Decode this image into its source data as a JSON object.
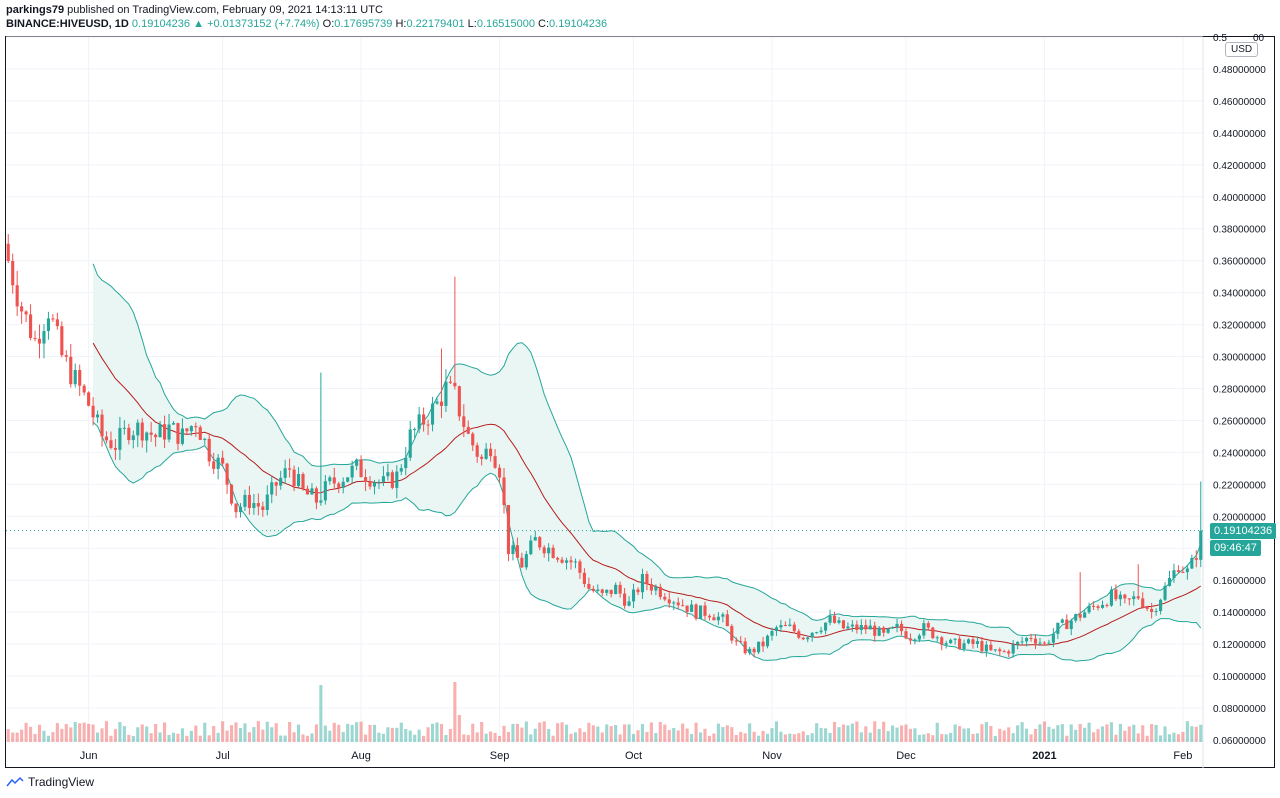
{
  "header": {
    "author": "parkings79",
    "published": "published on TradingView.com, February 09, 2021 14:13:11 UTC",
    "symbol": "BINANCE:HIVEUSD, 1D",
    "last": "0.19104236",
    "change": "+0.01373152 (+7.74%)",
    "o_label": "O:",
    "o": "0.17695739",
    "h_label": "H:",
    "h": "0.22179401",
    "l_label": "L:",
    "l": "0.16515000",
    "c_label": "C:",
    "c": "0.19104236"
  },
  "currency": "USD",
  "price_tag": "0.19104236",
  "countdown_tag": "09:46:47",
  "footer": {
    "brand": "TradingView"
  },
  "colors": {
    "up": "#26a69a",
    "down": "#ef5350",
    "band": "#26a69a",
    "basis": "#b71c1c",
    "band_fill": "#e9f6f4"
  },
  "chart_data": {
    "type": "candlestick",
    "y_axis": {
      "min": 0.06,
      "max": 0.5,
      "ticks": [
        "0.48000000",
        "0.46000000",
        "0.44000000",
        "0.42000000",
        "0.40000000",
        "0.38000000",
        "0.36000000",
        "0.34000000",
        "0.32000000",
        "0.30000000",
        "0.28000000",
        "0.26000000",
        "0.24000000",
        "0.22000000",
        "0.20000000",
        "0.16000000",
        "0.14000000",
        "0.12000000",
        "0.10000000",
        "0.08000000",
        "0.06000000"
      ],
      "tick_values": [
        0.48,
        0.46,
        0.44,
        0.42,
        0.4,
        0.38,
        0.36,
        0.34,
        0.32,
        0.3,
        0.28,
        0.26,
        0.24,
        0.22,
        0.2,
        0.16,
        0.14,
        0.12,
        0.1,
        0.08,
        0.06
      ],
      "top_tick_partial": "0.5",
      "top_tick_partial_suffix": "00"
    },
    "x_axis": {
      "labels": [
        "Jun",
        "Jul",
        "Aug",
        "Sep",
        "Oct",
        "Nov",
        "Dec",
        "2021",
        "Feb"
      ],
      "label_day_index": [
        18,
        48,
        79,
        110,
        140,
        171,
        201,
        232,
        263
      ],
      "bold": [
        false,
        false,
        false,
        false,
        false,
        false,
        false,
        true,
        false
      ]
    },
    "last_price": 0.19104236,
    "close_anchors": [
      [
        0,
        0.36
      ],
      [
        3,
        0.33
      ],
      [
        6,
        0.31
      ],
      [
        9,
        0.33
      ],
      [
        12,
        0.3
      ],
      [
        15,
        0.285
      ],
      [
        18,
        0.27
      ],
      [
        21,
        0.25
      ],
      [
        24,
        0.245
      ],
      [
        27,
        0.255
      ],
      [
        30,
        0.255
      ],
      [
        33,
        0.25
      ],
      [
        36,
        0.255
      ],
      [
        39,
        0.25
      ],
      [
        42,
        0.26
      ],
      [
        45,
        0.24
      ],
      [
        48,
        0.23
      ],
      [
        51,
        0.205
      ],
      [
        54,
        0.21
      ],
      [
        57,
        0.205
      ],
      [
        60,
        0.22
      ],
      [
        63,
        0.23
      ],
      [
        66,
        0.215
      ],
      [
        69,
        0.21
      ],
      [
        72,
        0.22
      ],
      [
        75,
        0.225
      ],
      [
        78,
        0.23
      ],
      [
        81,
        0.225
      ],
      [
        84,
        0.22
      ],
      [
        87,
        0.225
      ],
      [
        90,
        0.25
      ],
      [
        93,
        0.26
      ],
      [
        96,
        0.27
      ],
      [
        98,
        0.28
      ],
      [
        100,
        0.275
      ],
      [
        103,
        0.25
      ],
      [
        106,
        0.235
      ],
      [
        108,
        0.245
      ],
      [
        110,
        0.23
      ],
      [
        112,
        0.18
      ],
      [
        115,
        0.17
      ],
      [
        118,
        0.185
      ],
      [
        121,
        0.18
      ],
      [
        124,
        0.175
      ],
      [
        127,
        0.17
      ],
      [
        130,
        0.155
      ],
      [
        133,
        0.15
      ],
      [
        136,
        0.155
      ],
      [
        139,
        0.145
      ],
      [
        142,
        0.16
      ],
      [
        145,
        0.155
      ],
      [
        148,
        0.15
      ],
      [
        151,
        0.145
      ],
      [
        154,
        0.14
      ],
      [
        157,
        0.14
      ],
      [
        160,
        0.135
      ],
      [
        163,
        0.12
      ],
      [
        166,
        0.115
      ],
      [
        169,
        0.12
      ],
      [
        172,
        0.13
      ],
      [
        175,
        0.13
      ],
      [
        178,
        0.125
      ],
      [
        181,
        0.13
      ],
      [
        184,
        0.135
      ],
      [
        187,
        0.13
      ],
      [
        190,
        0.13
      ],
      [
        193,
        0.13
      ],
      [
        196,
        0.125
      ],
      [
        199,
        0.13
      ],
      [
        202,
        0.125
      ],
      [
        205,
        0.13
      ],
      [
        208,
        0.125
      ],
      [
        211,
        0.12
      ],
      [
        214,
        0.12
      ],
      [
        217,
        0.12
      ],
      [
        220,
        0.115
      ],
      [
        223,
        0.115
      ],
      [
        226,
        0.12
      ],
      [
        229,
        0.125
      ],
      [
        232,
        0.12
      ],
      [
        235,
        0.13
      ],
      [
        238,
        0.135
      ],
      [
        241,
        0.14
      ],
      [
        244,
        0.145
      ],
      [
        247,
        0.15
      ],
      [
        250,
        0.145
      ],
      [
        253,
        0.15
      ],
      [
        256,
        0.14
      ],
      [
        259,
        0.155
      ],
      [
        262,
        0.17
      ],
      [
        264,
        0.165
      ],
      [
        265,
        0.17
      ],
      [
        266,
        0.177
      ],
      [
        267,
        0.191
      ]
    ],
    "spikes": [
      {
        "day": 70,
        "high": 0.29
      },
      {
        "day": 97,
        "high": 0.305
      },
      {
        "day": 100,
        "high": 0.35
      },
      {
        "day": 240,
        "high": 0.165
      },
      {
        "day": 253,
        "high": 0.17
      },
      {
        "day": 267,
        "high": 0.22179401
      }
    ],
    "volume_spikes": [
      {
        "day": 70,
        "rel": 0.95
      },
      {
        "day": 100,
        "rel": 1.0
      },
      {
        "day": 101,
        "rel": 0.45
      },
      {
        "day": 13,
        "rel": 0.3
      },
      {
        "day": 33,
        "rel": 0.3
      }
    ],
    "indicators": {
      "bollinger_bands": {
        "period": 20,
        "stddev": 2
      }
    }
  }
}
